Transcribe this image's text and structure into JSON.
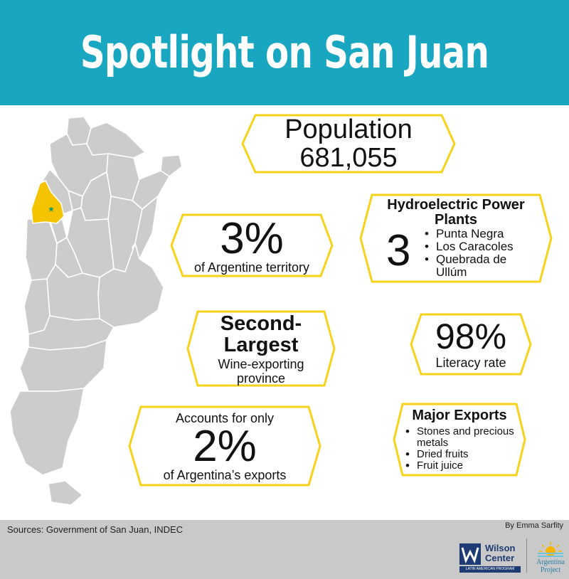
{
  "header": {
    "title": "Spotlight on San Juan"
  },
  "colors": {
    "banner": "#18a6c1",
    "accent": "#f7d21a",
    "highlight": "#f5c400",
    "map_fill": "#cccccc",
    "footer": "#c9c9c9"
  },
  "population": {
    "label": "Population",
    "value": "681,055"
  },
  "territory": {
    "value": "3%",
    "caption": "of Argentine territory"
  },
  "hydro": {
    "title": "Hydroelectric Power Plants",
    "count": "3",
    "plants": [
      "Punta Negra",
      "Los Caracoles",
      "Quebrada de Ullúm"
    ]
  },
  "wine": {
    "headline": "Second-Largest",
    "caption": "Wine-exporting province"
  },
  "literacy": {
    "value": "98%",
    "caption": "Literacy rate"
  },
  "exports_share": {
    "lead": "Accounts for only",
    "value": "2%",
    "caption": "of Argentina’s exports"
  },
  "major_exports": {
    "title": "Major Exports",
    "items": [
      "Stones and precious metals",
      "Dried fruits",
      "Fruit juice"
    ]
  },
  "footer": {
    "sources": "Sources: Government of San Juan, INDEC",
    "byline": "By Emma Sarfity",
    "wilson_logo": {
      "line1": "Wilson",
      "line2": "Center",
      "sub": "LATIN AMERICAN PROGRAM"
    },
    "argentina_logo": {
      "line1": "Argentina",
      "line2": "Project"
    }
  },
  "icons": {
    "capital_marker": "star-icon"
  }
}
